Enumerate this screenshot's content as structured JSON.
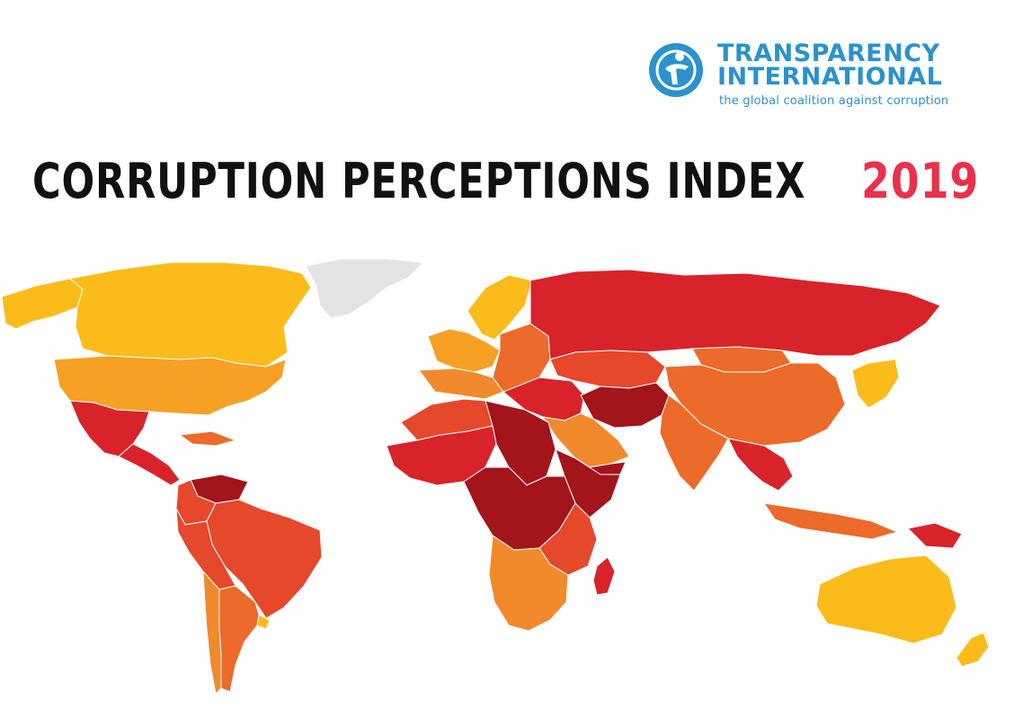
{
  "logo": {
    "line1": "TRANSPARENCY",
    "line2": "INTERNATIONAL",
    "tagline": "the global coalition against corruption"
  },
  "title": {
    "main": "CORRUPTION PERCEPTIONS INDEX",
    "year": "2019"
  },
  "colors": {
    "brand_blue": "#2a92cf",
    "title_black": "#111111",
    "year_red": "#e8314a",
    "score_very_high": "#fbbb1a",
    "score_high": "#f6a024",
    "score_mid_high": "#f08a2c",
    "score_mid": "#ec6a2a",
    "score_mid_low": "#e5482a",
    "score_low": "#d8232a",
    "score_very_low": "#a3141b",
    "no_data": "#e3e3e3",
    "ocean": "#ffffff"
  },
  "map": {
    "regions": [
      {
        "name": "canada",
        "tier": "score_very_high"
      },
      {
        "name": "alaska",
        "tier": "score_very_high"
      },
      {
        "name": "greenland",
        "tier": "no_data"
      },
      {
        "name": "united-states",
        "tier": "score_high"
      },
      {
        "name": "mexico",
        "tier": "score_low"
      },
      {
        "name": "central-america",
        "tier": "score_low"
      },
      {
        "name": "caribbean",
        "tier": "score_mid"
      },
      {
        "name": "venezuela",
        "tier": "score_very_low"
      },
      {
        "name": "colombia",
        "tier": "score_mid_low"
      },
      {
        "name": "brazil",
        "tier": "score_mid_low"
      },
      {
        "name": "peru-bolivia",
        "tier": "score_mid_low"
      },
      {
        "name": "chile",
        "tier": "score_mid_high"
      },
      {
        "name": "argentina",
        "tier": "score_mid"
      },
      {
        "name": "uruguay",
        "tier": "score_very_high"
      },
      {
        "name": "scandinavia",
        "tier": "score_very_high"
      },
      {
        "name": "western-europe",
        "tier": "score_high"
      },
      {
        "name": "southern-europe",
        "tier": "score_mid_high"
      },
      {
        "name": "eastern-europe",
        "tier": "score_mid"
      },
      {
        "name": "russia",
        "tier": "score_low"
      },
      {
        "name": "central-asia",
        "tier": "score_mid_low"
      },
      {
        "name": "china",
        "tier": "score_mid"
      },
      {
        "name": "mongolia",
        "tier": "score_mid"
      },
      {
        "name": "korea-japan",
        "tier": "score_very_high"
      },
      {
        "name": "middle-east",
        "tier": "score_low"
      },
      {
        "name": "arabian-peninsula",
        "tier": "score_mid_high"
      },
      {
        "name": "yemen",
        "tier": "score_very_low"
      },
      {
        "name": "iran-afghanistan",
        "tier": "score_very_low"
      },
      {
        "name": "india",
        "tier": "score_mid"
      },
      {
        "name": "southeast-asia",
        "tier": "score_low"
      },
      {
        "name": "indonesia",
        "tier": "score_mid"
      },
      {
        "name": "papua",
        "tier": "score_low"
      },
      {
        "name": "north-africa",
        "tier": "score_mid_low"
      },
      {
        "name": "libya-sudan",
        "tier": "score_very_low"
      },
      {
        "name": "west-africa",
        "tier": "score_low"
      },
      {
        "name": "central-africa",
        "tier": "score_very_low"
      },
      {
        "name": "horn-of-africa",
        "tier": "score_very_low"
      },
      {
        "name": "east-africa",
        "tier": "score_mid_low"
      },
      {
        "name": "southern-africa",
        "tier": "score_mid_high"
      },
      {
        "name": "madagascar",
        "tier": "score_low"
      },
      {
        "name": "australia",
        "tier": "score_very_high"
      },
      {
        "name": "new-zealand",
        "tier": "score_very_high"
      }
    ]
  }
}
